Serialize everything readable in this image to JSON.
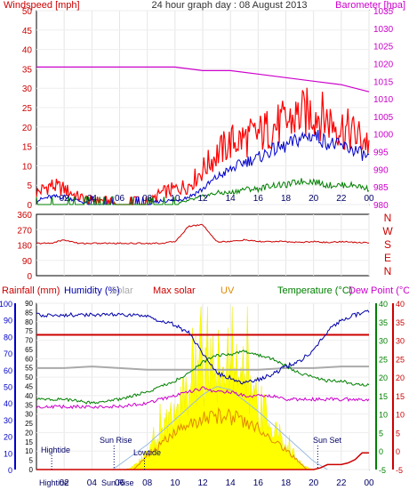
{
  "colors": {
    "windspeed": "#ff0000",
    "windspeed_avg": "#0000cc",
    "windspeed_green": "#008000",
    "barometer": "#cc00cc",
    "direction": "#cc0000",
    "rainfall": "#cc0000",
    "humidity": "#0000aa",
    "solar": "#aaaaaa",
    "max_solar": "#9bbbe0",
    "uv": "#e08800",
    "temperature": "#008000",
    "dew_point": "#cc00cc",
    "solar_fill": "#ffff00",
    "axis_blue": "#0000cc",
    "axis_red": "#cc0000",
    "axis_green": "#008000",
    "axis_magenta": "#cc00cc"
  },
  "chart_data": [
    {
      "type": "line",
      "title": "24 hour graph day : 08 August 2013",
      "y_left_label": "Windspeed [mph]",
      "y_right_label": "Barometer [hpa]",
      "x_ticks": [
        "02",
        "04",
        "06",
        "08",
        "10",
        "12",
        "14",
        "16",
        "18",
        "20",
        "22",
        "00"
      ],
      "y_left_ticks": [
        "50",
        "45",
        "40",
        "35",
        "30",
        "25",
        "20",
        "15",
        "10",
        "5",
        "0"
      ],
      "y_left_range": [
        0,
        50
      ],
      "y_right_ticks": [
        "1035",
        "1030",
        "1025",
        "1020",
        "1015",
        "1010",
        "1005",
        "1000",
        "995",
        "990",
        "985",
        "980"
      ],
      "y_right_range": [
        980,
        1035
      ],
      "series": [
        {
          "name": "Windspeed",
          "x": [
            0,
            1,
            2,
            3,
            4,
            5,
            6,
            7,
            8,
            9,
            10,
            11,
            12,
            13,
            14,
            15,
            16,
            17,
            18,
            19,
            20,
            21,
            22,
            23,
            24
          ],
          "y": [
            3,
            5,
            4,
            2,
            1,
            1,
            0,
            0,
            0,
            3,
            4,
            5,
            9,
            13,
            16,
            17,
            18,
            20,
            21,
            23,
            24,
            22,
            20,
            18,
            16
          ]
        },
        {
          "name": "Average",
          "x": [
            0,
            1,
            2,
            3,
            4,
            5,
            6,
            7,
            8,
            9,
            10,
            11,
            12,
            13,
            14,
            15,
            16,
            17,
            18,
            19,
            20,
            21,
            22,
            23,
            24
          ],
          "y": [
            1,
            2,
            2,
            1,
            0,
            0,
            0,
            0,
            0,
            1,
            1,
            2,
            4,
            7,
            9,
            11,
            12,
            14,
            15,
            17,
            18,
            16,
            15,
            14,
            12
          ]
        },
        {
          "name": "Gust low",
          "x": [
            0,
            1,
            2,
            3,
            4,
            5,
            6,
            7,
            8,
            9,
            10,
            11,
            12,
            13,
            14,
            15,
            16,
            17,
            18,
            19,
            20,
            21,
            22,
            23,
            24
          ],
          "y": [
            0,
            0,
            0,
            0,
            0,
            0,
            0,
            0,
            0,
            0,
            0,
            1,
            2,
            3,
            3,
            4,
            4,
            5,
            5,
            6,
            6,
            5,
            5,
            5,
            4
          ]
        },
        {
          "name": "Barometer",
          "x": [
            0,
            2,
            4,
            6,
            8,
            10,
            12,
            14,
            16,
            18,
            20,
            22,
            24
          ],
          "y": [
            1019,
            1019,
            1019,
            1019,
            1019,
            1019,
            1018,
            1018,
            1017,
            1016,
            1015,
            1014,
            1012
          ]
        }
      ]
    },
    {
      "type": "line",
      "y_left_ticks": [
        "360",
        "270",
        "180",
        "90",
        "0"
      ],
      "y_left_range": [
        0,
        360
      ],
      "y_right_ticks": [
        "N",
        "W",
        "S",
        "E",
        "N"
      ],
      "series": [
        {
          "name": "Wind direction",
          "x": [
            0,
            1,
            2,
            3,
            4,
            5,
            6,
            7,
            8,
            9,
            10,
            11,
            12,
            13,
            14,
            15,
            16,
            17,
            18,
            19,
            20,
            21,
            22,
            23,
            24
          ],
          "y": [
            190,
            190,
            210,
            190,
            190,
            190,
            190,
            190,
            190,
            190,
            200,
            290,
            300,
            200,
            200,
            210,
            200,
            200,
            200,
            195,
            200,
            195,
            200,
            195,
            195
          ]
        }
      ]
    },
    {
      "type": "line",
      "header_labels": [
        "Rainfall (mm)",
        "Humidity (%)",
        "Solar",
        "Max solar",
        "UV",
        "Temperature (°C)",
        "Dew Point (°C)"
      ],
      "x_ticks": [
        "02",
        "04",
        "06",
        "08",
        "10",
        "12",
        "14",
        "16",
        "18",
        "20",
        "22",
        "00"
      ],
      "y_humidity_ticks": [
        "100",
        "90",
        "80",
        "70",
        "60",
        "50",
        "40",
        "30",
        "20",
        "10",
        "0"
      ],
      "y_rain_ticks": [
        "90",
        "85",
        "80",
        "75",
        "70",
        "65",
        "60",
        "55",
        "50",
        "45",
        "40",
        "35",
        "30",
        "25",
        "20",
        "15",
        "10",
        "5",
        "0"
      ],
      "y_temp_ticks": [
        "40",
        "35",
        "30",
        "25",
        "20",
        "15",
        "10",
        "5",
        "0",
        "-5"
      ],
      "y_dew_ticks": [
        "40",
        "35",
        "30",
        "25",
        "20",
        "15",
        "10",
        "5",
        "0",
        "-5"
      ],
      "annotations": [
        "Hightide",
        "Sun Rise",
        "Lowtide",
        "Sun Set",
        "Hightide",
        "Sun Rise"
      ],
      "series": [
        {
          "name": "Humidity",
          "x": [
            0,
            2,
            4,
            6,
            8,
            10,
            11,
            12,
            13,
            14,
            15,
            16,
            17,
            18,
            19,
            20,
            21,
            22,
            23,
            24
          ],
          "y": [
            93,
            93,
            93,
            93,
            92,
            87,
            82,
            70,
            58,
            55,
            52,
            54,
            57,
            62,
            65,
            72,
            83,
            90,
            93,
            95
          ]
        },
        {
          "name": "Temperature",
          "x": [
            0,
            2,
            4,
            6,
            8,
            10,
            11,
            12,
            13,
            14,
            15,
            16,
            17,
            18,
            19,
            20,
            21,
            22,
            23,
            24
          ],
          "y": [
            14,
            14,
            13,
            14,
            16,
            19,
            21,
            24,
            26,
            26,
            27,
            26,
            25,
            23,
            21,
            20,
            19,
            19,
            18,
            18
          ]
        },
        {
          "name": "Dew Point",
          "x": [
            0,
            2,
            4,
            6,
            8,
            10,
            11,
            12,
            13,
            14,
            15,
            16,
            17,
            18,
            19,
            20,
            21,
            22,
            23,
            24
          ],
          "y": [
            12,
            12,
            12,
            12,
            13,
            15,
            16,
            17,
            16,
            16,
            15,
            15,
            15,
            14,
            14,
            14,
            14,
            14,
            14,
            14
          ]
        },
        {
          "name": "Solar",
          "x": [
            0,
            2,
            4,
            6,
            8,
            10,
            12,
            14,
            16,
            18,
            20,
            22,
            24
          ],
          "y": [
            61,
            61,
            62,
            61,
            60,
            60,
            60,
            60,
            60,
            61,
            61,
            62,
            62
          ]
        },
        {
          "name": "Max solar",
          "x": [
            5.5,
            8,
            10,
            12,
            13,
            14,
            16,
            18,
            20,
            21
          ],
          "y": [
            0,
            15,
            30,
            45,
            50,
            48,
            35,
            20,
            5,
            0
          ]
        },
        {
          "name": "Rainfall",
          "x": [
            0,
            20,
            20.5,
            21,
            22,
            22.5,
            23,
            23.5,
            24
          ],
          "y": [
            0,
            0,
            1,
            3,
            3,
            4,
            6,
            10,
            10
          ]
        },
        {
          "name": "Max line",
          "x": [
            0,
            24
          ],
          "y": [
            81,
            81
          ]
        }
      ]
    }
  ]
}
